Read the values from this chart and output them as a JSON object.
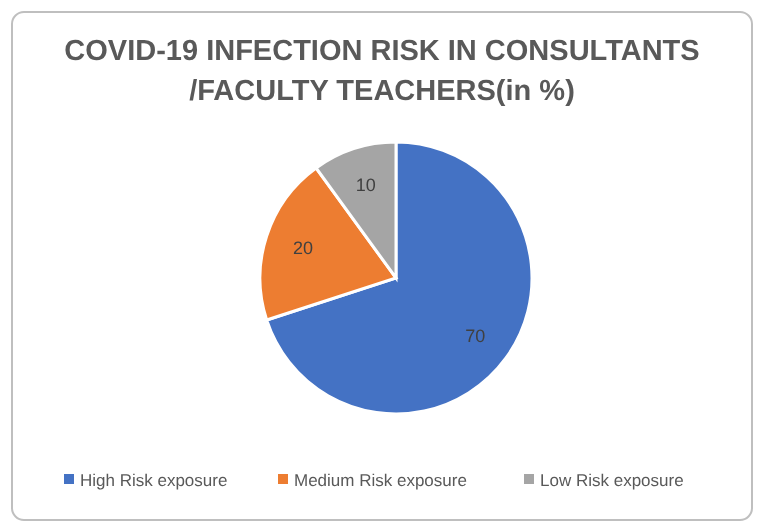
{
  "chart_data": {
    "type": "pie",
    "title": "COVID-19 INFECTION RISK IN CONSULTANTS /FACULTY TEACHERS(in %)",
    "categories": [
      "High Risk exposure",
      "Medium Risk exposure",
      "Low Risk exposure"
    ],
    "values": [
      70,
      20,
      10
    ],
    "colors": [
      "#4472c4",
      "#ed7d31",
      "#a5a5a5"
    ],
    "data_labels": true,
    "legend": "bottom"
  }
}
